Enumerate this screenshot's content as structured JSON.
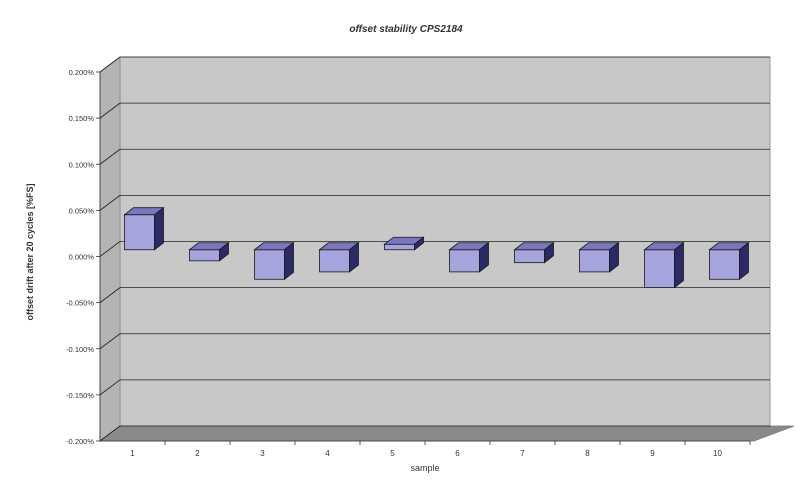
{
  "chart_data": {
    "type": "bar",
    "title": "offset stability CPS2184",
    "xlabel": "sample",
    "ylabel": "offset drift after 20 cycles [%FS]",
    "categories": [
      "1",
      "2",
      "3",
      "4",
      "5",
      "6",
      "7",
      "8",
      "9",
      "10"
    ],
    "series": [
      {
        "values": [
          0.038,
          -0.012,
          -0.032,
          -0.024,
          0.006,
          -0.024,
          -0.014,
          -0.024,
          -0.041,
          -0.032
        ]
      }
    ],
    "y_ticks": [
      "0.200%",
      "0.150%",
      "0.100%",
      "0.050%",
      "0.000%",
      "-0.050%",
      "-0.100%",
      "-0.150%",
      "-0.200%"
    ],
    "ylim": [
      -0.2,
      0.2
    ],
    "grid": true,
    "legend": "none",
    "colors": {
      "bar_front": "#a6a4dc",
      "bar_top": "#7a77c0",
      "bar_side": "#2c2a66",
      "bar_outline": "#1a1a1a",
      "wall": "#c8c8c8",
      "floor": "#8a8a8a",
      "gridline": "#222222"
    }
  }
}
